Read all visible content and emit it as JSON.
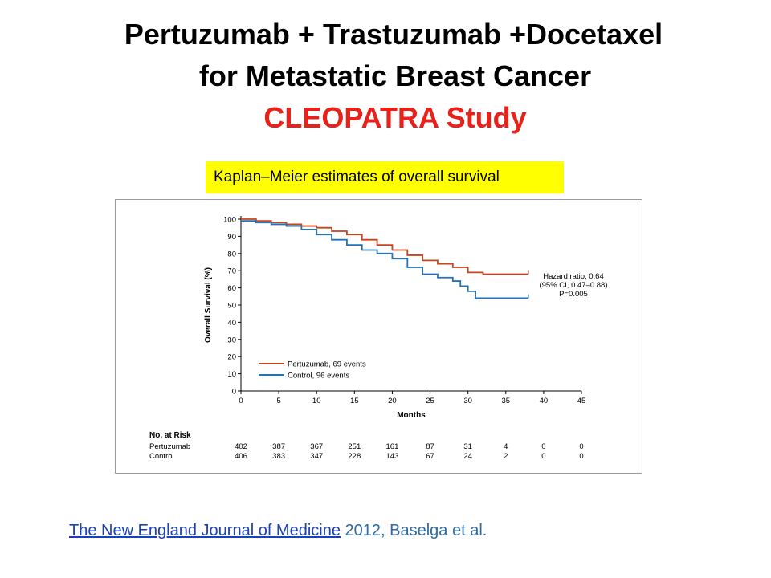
{
  "slide": {
    "title_line_1": "Pertuzumab + Trastuzumab +Docetaxel",
    "title_line_2": "for Metastatic Breast Cancer",
    "title_line_3": "CLEOPATRA Study",
    "caption": "Kaplan–Meier estimates of overall survival",
    "citation_link": "The New England Journal of Medicine",
    "citation_rest": " 2012, Baselga et al.",
    "colors": {
      "title_accent": "#e8221a",
      "caption_bg": "#ffff00",
      "link": "#1a3fb8",
      "citation_text": "#2e6aa6"
    }
  },
  "chart_data": {
    "type": "line",
    "title": "",
    "xlabel": "Months",
    "ylabel": "Overall Survival (%)",
    "xlim": [
      0,
      45
    ],
    "ylim": [
      0,
      100
    ],
    "x_ticks": [
      0,
      5,
      10,
      15,
      20,
      25,
      30,
      35,
      40,
      45
    ],
    "y_ticks": [
      0,
      10,
      20,
      30,
      40,
      50,
      60,
      70,
      80,
      90,
      100
    ],
    "grid": false,
    "legend_position": "bottom-left",
    "series": [
      {
        "name": "Pertuzumab, 69 events",
        "color": "#c8431e",
        "points": [
          [
            0,
            100
          ],
          [
            2,
            99
          ],
          [
            4,
            98
          ],
          [
            6,
            97
          ],
          [
            8,
            96
          ],
          [
            10,
            95
          ],
          [
            12,
            93
          ],
          [
            14,
            91
          ],
          [
            16,
            88
          ],
          [
            18,
            85
          ],
          [
            20,
            82
          ],
          [
            22,
            79
          ],
          [
            24,
            76
          ],
          [
            26,
            74
          ],
          [
            28,
            72
          ],
          [
            30,
            69
          ],
          [
            32,
            68
          ],
          [
            35,
            68
          ],
          [
            38,
            68
          ]
        ]
      },
      {
        "name": "Control, 96 events",
        "color": "#2373b6",
        "points": [
          [
            0,
            99
          ],
          [
            2,
            98
          ],
          [
            4,
            97
          ],
          [
            6,
            96
          ],
          [
            8,
            94
          ],
          [
            10,
            91
          ],
          [
            12,
            88
          ],
          [
            14,
            85
          ],
          [
            16,
            82
          ],
          [
            18,
            80
          ],
          [
            20,
            77
          ],
          [
            22,
            72
          ],
          [
            24,
            68
          ],
          [
            26,
            66
          ],
          [
            28,
            64
          ],
          [
            29,
            61
          ],
          [
            30,
            58
          ],
          [
            31,
            54
          ],
          [
            34,
            54
          ],
          [
            38,
            54
          ]
        ]
      }
    ],
    "annotations": [
      "Hazard ratio, 0.64",
      "(95% CI, 0.47–0.88)",
      "P=0.005"
    ],
    "risk_table": {
      "title": "No. at Risk",
      "timepoints": [
        0,
        5,
        10,
        15,
        20,
        25,
        30,
        35,
        40,
        45
      ],
      "rows": [
        {
          "label": "Pertuzumab",
          "values": [
            "402",
            "387",
            "367",
            "251",
            "161",
            "87",
            "31",
            "4",
            "0",
            "0"
          ]
        },
        {
          "label": "Control",
          "values": [
            "406",
            "383",
            "347",
            "228",
            "143",
            "67",
            "24",
            "2",
            "0",
            "0"
          ]
        }
      ]
    }
  }
}
